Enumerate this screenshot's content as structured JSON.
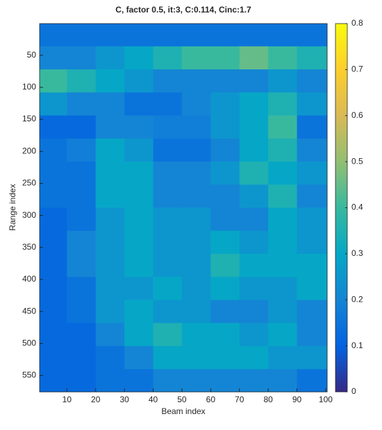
{
  "chart_data": {
    "type": "heatmap",
    "title": "C, factor 0.5, it:3, C:0.114, Cinc:1.7",
    "x_label": "Beam index",
    "y_label": "Range index",
    "x": [
      5,
      15,
      25,
      35,
      45,
      55,
      65,
      75,
      85,
      95
    ],
    "y": [
      18,
      54,
      90,
      126,
      162,
      198,
      234,
      270,
      306,
      342,
      378,
      414,
      450,
      486,
      522,
      558
    ],
    "values": [
      [
        0.15,
        0.15,
        0.15,
        0.15,
        0.15,
        0.15,
        0.15,
        0.15,
        0.15,
        0.15
      ],
      [
        0.2,
        0.2,
        0.25,
        0.3,
        0.35,
        0.4,
        0.4,
        0.45,
        0.4,
        0.35
      ],
      [
        0.4,
        0.35,
        0.3,
        0.25,
        0.2,
        0.2,
        0.2,
        0.2,
        0.25,
        0.2
      ],
      [
        0.25,
        0.2,
        0.2,
        0.15,
        0.15,
        0.2,
        0.25,
        0.3,
        0.35,
        0.25
      ],
      [
        0.12,
        0.12,
        0.2,
        0.2,
        0.18,
        0.18,
        0.25,
        0.3,
        0.4,
        0.15
      ],
      [
        0.15,
        0.18,
        0.3,
        0.25,
        0.15,
        0.15,
        0.2,
        0.3,
        0.35,
        0.2
      ],
      [
        0.15,
        0.15,
        0.3,
        0.3,
        0.2,
        0.2,
        0.25,
        0.35,
        0.3,
        0.25
      ],
      [
        0.15,
        0.15,
        0.3,
        0.3,
        0.2,
        0.2,
        0.2,
        0.25,
        0.35,
        0.2
      ],
      [
        0.12,
        0.15,
        0.25,
        0.3,
        0.25,
        0.25,
        0.2,
        0.2,
        0.3,
        0.25
      ],
      [
        0.12,
        0.2,
        0.25,
        0.3,
        0.25,
        0.25,
        0.3,
        0.25,
        0.3,
        0.25
      ],
      [
        0.12,
        0.2,
        0.25,
        0.3,
        0.25,
        0.25,
        0.35,
        0.3,
        0.3,
        0.3
      ],
      [
        0.12,
        0.15,
        0.25,
        0.25,
        0.3,
        0.25,
        0.3,
        0.25,
        0.25,
        0.3
      ],
      [
        0.12,
        0.15,
        0.25,
        0.3,
        0.25,
        0.25,
        0.2,
        0.2,
        0.25,
        0.2
      ],
      [
        0.12,
        0.12,
        0.2,
        0.3,
        0.35,
        0.3,
        0.3,
        0.25,
        0.3,
        0.2
      ],
      [
        0.12,
        0.12,
        0.15,
        0.2,
        0.3,
        0.3,
        0.3,
        0.3,
        0.25,
        0.25
      ],
      [
        0.12,
        0.12,
        0.15,
        0.15,
        0.2,
        0.2,
        0.2,
        0.2,
        0.2,
        0.15
      ]
    ],
    "xlim": [
      0.5,
      100.5
    ],
    "xticks": [
      10,
      20,
      30,
      40,
      50,
      60,
      70,
      80,
      90,
      100
    ],
    "ylim": [
      0.5,
      575.5
    ],
    "yticks": [
      50,
      100,
      150,
      200,
      250,
      300,
      350,
      400,
      450,
      500,
      550
    ],
    "y_reversed": true,
    "clim": [
      0,
      0.8
    ],
    "cticks": [
      0,
      0.1,
      0.2,
      0.3,
      0.4,
      0.5,
      0.6,
      0.7,
      0.8
    ],
    "colormap": [
      "#352a87",
      "#0363e1",
      "#1485d4",
      "#06a7c6",
      "#38b99e",
      "#92bf73",
      "#d9ba56",
      "#fcce2e",
      "#f9fb0e"
    ]
  }
}
